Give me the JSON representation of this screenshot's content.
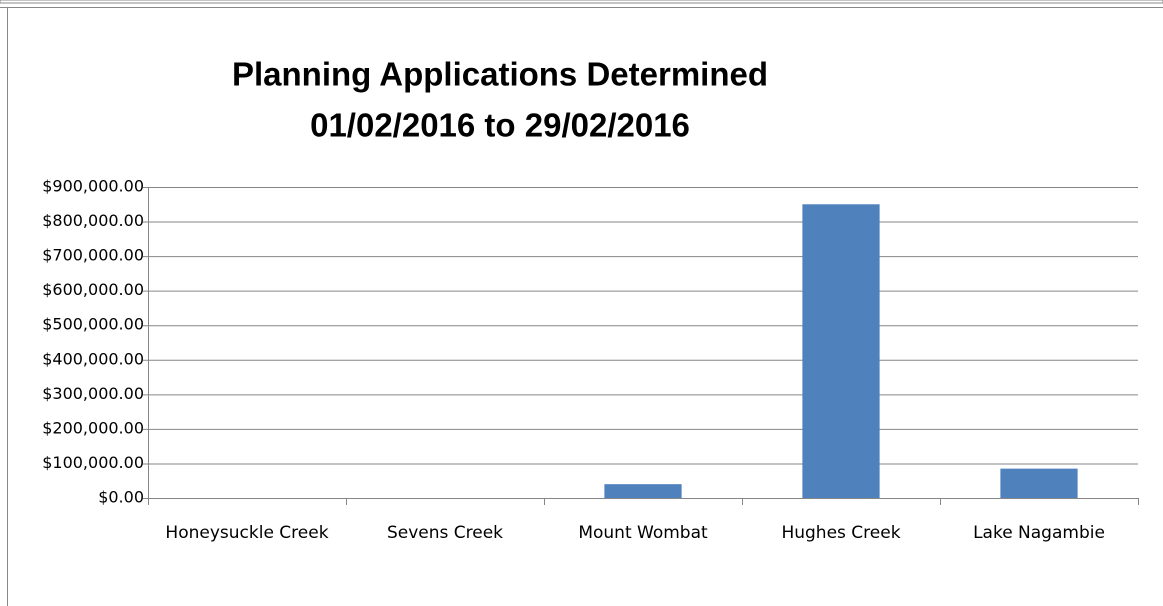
{
  "chart_data": {
    "type": "bar",
    "title": [
      "Planning Applications Determined",
      "01/02/2016 to 29/02/2016"
    ],
    "categories": [
      "Honeysuckle Creek",
      "Sevens Creek",
      "Mount Wombat",
      "Hughes Creek",
      "Lake Nagambie"
    ],
    "values": [
      0,
      0,
      40000,
      850000,
      85000
    ],
    "color": "#4f81bd",
    "ylim": [
      0,
      900000
    ],
    "yticks": [
      {
        "value": 0,
        "label": "$0.00"
      },
      {
        "value": 100000,
        "label": "$100,000.00"
      },
      {
        "value": 200000,
        "label": "$200,000.00"
      },
      {
        "value": 300000,
        "label": "$300,000.00"
      },
      {
        "value": 400000,
        "label": "$400,000.00"
      },
      {
        "value": 500000,
        "label": "$500,000.00"
      },
      {
        "value": 600000,
        "label": "$600,000.00"
      },
      {
        "value": 700000,
        "label": "$700,000.00"
      },
      {
        "value": 800000,
        "label": "$800,000.00"
      },
      {
        "value": 900000,
        "label": "$900,000.00"
      }
    ],
    "grid": true
  }
}
